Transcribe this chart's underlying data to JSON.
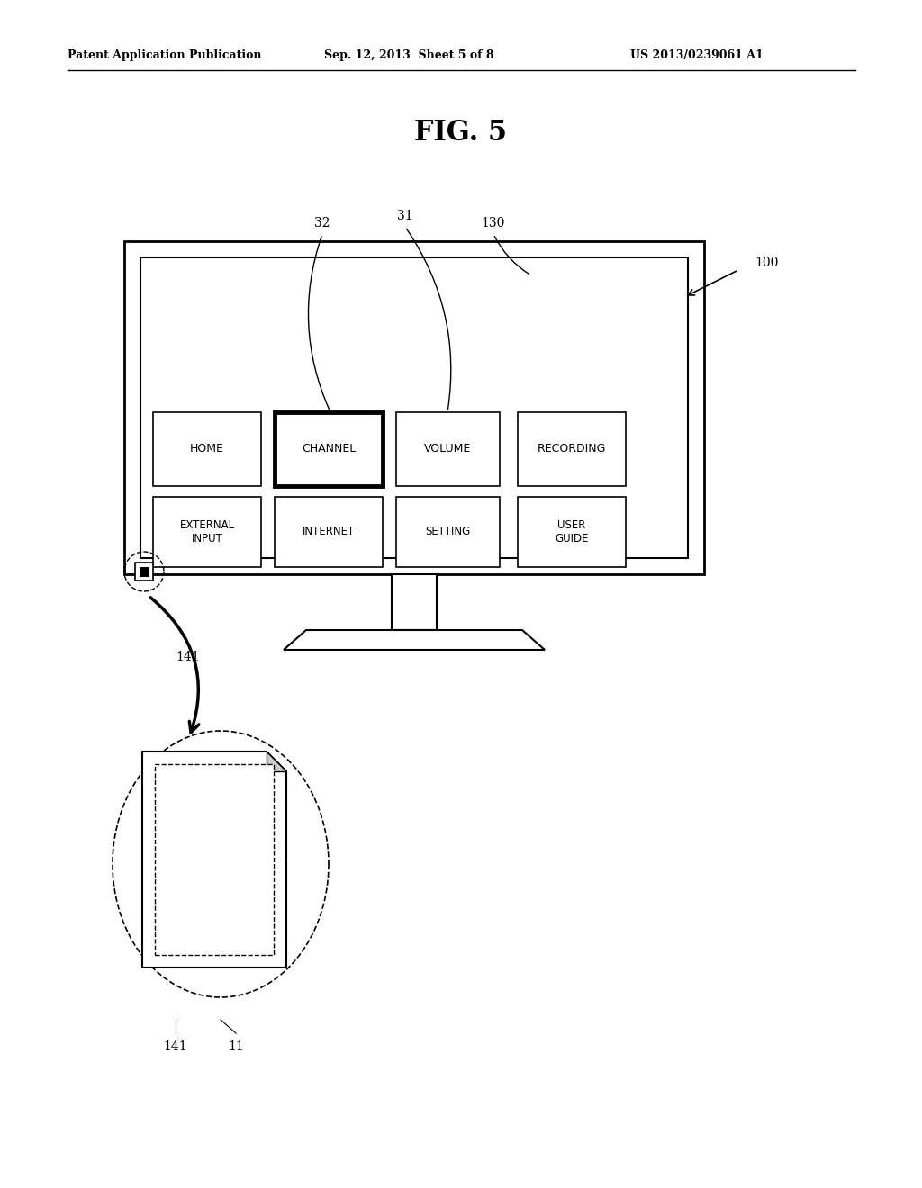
{
  "header_left": "Patent Application Publication",
  "header_mid": "Sep. 12, 2013  Sheet 5 of 8",
  "header_right": "US 2013/0239061 A1",
  "fig_label": "FIG. 5",
  "bg_color": "#ffffff",
  "buttons_row1": [
    "HOME",
    "CHANNEL",
    "VOLUME",
    "RECORDING"
  ],
  "buttons_row2": [
    "EXTERNAL\nINPUT",
    "INTERNET",
    "SETTING",
    "USER\nGUIDE"
  ]
}
